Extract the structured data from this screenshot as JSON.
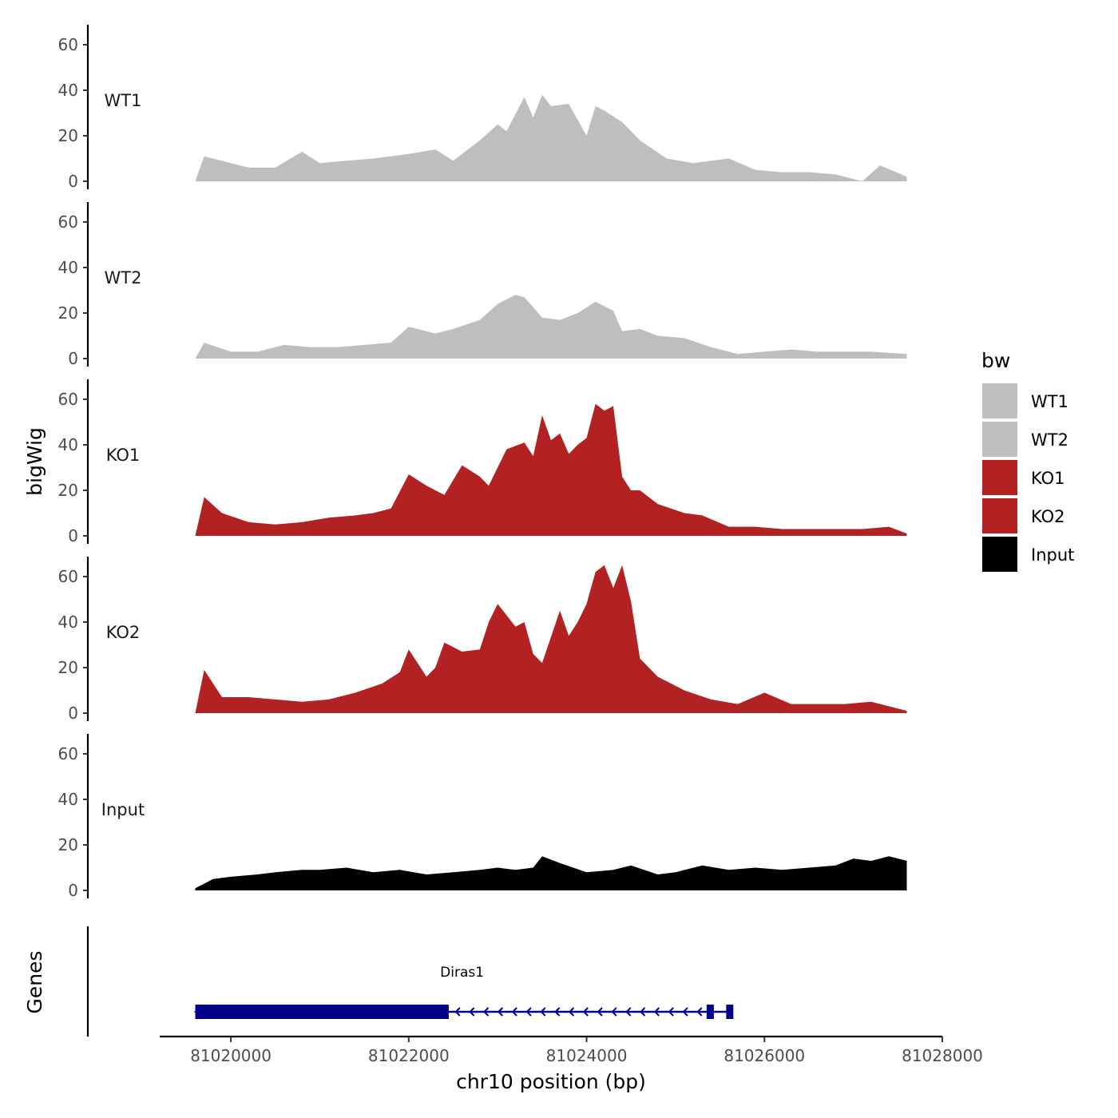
{
  "chart_data": {
    "type": "area",
    "title": "",
    "ylabel": "bigWig",
    "xlabel": "chr10 position (bp)",
    "ylim": [
      0,
      70
    ],
    "yticks": [
      0,
      20,
      40,
      60
    ],
    "xlim": [
      81019200,
      81028000
    ],
    "xticks": [
      81020000,
      81022000,
      81024000,
      81026000,
      81028000
    ],
    "xtick_labels": [
      "81020000",
      "81022000",
      "81024000",
      "81026000",
      "81028000"
    ],
    "ytick_labels": [
      "0",
      "20",
      "40",
      "60"
    ],
    "x_start": 81019600,
    "x_end": 81027600,
    "legend": {
      "title": "bw",
      "position": "right",
      "entries": [
        {
          "name": "WT1",
          "color": "#bebebe"
        },
        {
          "name": "WT2",
          "color": "#bebebe"
        },
        {
          "name": "KO1",
          "color": "#b22222"
        },
        {
          "name": "KO2",
          "color": "#b22222"
        },
        {
          "name": "Input",
          "color": "#000000"
        }
      ]
    },
    "series": [
      {
        "name": "WT1",
        "color": "#bebebe",
        "x": [
          81019600,
          81019700,
          81020000,
          81020200,
          81020500,
          81020800,
          81021000,
          81021300,
          81021600,
          81022000,
          81022300,
          81022500,
          81022800,
          81023000,
          81023100,
          81023300,
          81023400,
          81023500,
          81023600,
          81023800,
          81024000,
          81024100,
          81024200,
          81024400,
          81024500,
          81024600,
          81024900,
          81025200,
          81025600,
          81025900,
          81026200,
          81026500,
          81026800,
          81027100,
          81027300,
          81027600
        ],
        "values": [
          0,
          11,
          8,
          6,
          6,
          13,
          8,
          9,
          10,
          12,
          14,
          9,
          18,
          25,
          22,
          37,
          28,
          38,
          33,
          34,
          20,
          33,
          31,
          26,
          22,
          18,
          10,
          8,
          10,
          5,
          4,
          4,
          3,
          0,
          7,
          2
        ]
      },
      {
        "name": "WT2",
        "color": "#bebebe",
        "x": [
          81019600,
          81019700,
          81020000,
          81020300,
          81020600,
          81020900,
          81021200,
          81021500,
          81021800,
          81022000,
          81022300,
          81022500,
          81022800,
          81023000,
          81023200,
          81023300,
          81023500,
          81023700,
          81023900,
          81024100,
          81024300,
          81024400,
          81024600,
          81024800,
          81025100,
          81025400,
          81025700,
          81026000,
          81026300,
          81026600,
          81026900,
          81027200,
          81027600
        ],
        "values": [
          0,
          7,
          3,
          3,
          6,
          5,
          5,
          6,
          7,
          14,
          11,
          13,
          17,
          24,
          28,
          27,
          18,
          17,
          20,
          25,
          21,
          12,
          13,
          10,
          9,
          5,
          2,
          3,
          4,
          3,
          3,
          3,
          2
        ]
      },
      {
        "name": "KO1",
        "color": "#b22222",
        "x": [
          81019600,
          81019700,
          81019900,
          81020200,
          81020500,
          81020800,
          81021100,
          81021400,
          81021600,
          81021800,
          81022000,
          81022200,
          81022400,
          81022600,
          81022800,
          81022900,
          81023100,
          81023300,
          81023400,
          81023500,
          81023600,
          81023700,
          81023800,
          81023900,
          81024000,
          81024100,
          81024200,
          81024300,
          81024400,
          81024500,
          81024600,
          81024800,
          81025100,
          81025300,
          81025600,
          81025900,
          81026200,
          81026500,
          81026800,
          81027100,
          81027400,
          81027600
        ],
        "values": [
          0,
          17,
          10,
          6,
          5,
          6,
          8,
          9,
          10,
          12,
          27,
          22,
          18,
          31,
          26,
          22,
          38,
          41,
          35,
          53,
          42,
          45,
          36,
          40,
          43,
          58,
          55,
          57,
          26,
          20,
          20,
          14,
          10,
          9,
          4,
          4,
          3,
          3,
          3,
          3,
          4,
          1
        ]
      },
      {
        "name": "KO2",
        "color": "#b22222",
        "x": [
          81019600,
          81019700,
          81019900,
          81020200,
          81020500,
          81020800,
          81021100,
          81021400,
          81021700,
          81021900,
          81022000,
          81022200,
          81022300,
          81022400,
          81022600,
          81022800,
          81022900,
          81023000,
          81023200,
          81023300,
          81023400,
          81023500,
          81023700,
          81023800,
          81023900,
          81024000,
          81024100,
          81024200,
          81024300,
          81024400,
          81024500,
          81024600,
          81024800,
          81025100,
          81025400,
          81025700,
          81026000,
          81026300,
          81026600,
          81026900,
          81027200,
          81027600
        ],
        "values": [
          0,
          19,
          7,
          7,
          6,
          5,
          6,
          9,
          13,
          18,
          28,
          16,
          20,
          31,
          27,
          28,
          40,
          48,
          38,
          40,
          26,
          22,
          45,
          34,
          40,
          48,
          62,
          65,
          55,
          65,
          49,
          24,
          16,
          10,
          6,
          4,
          9,
          4,
          4,
          4,
          5,
          1
        ]
      },
      {
        "name": "Input",
        "color": "#000000",
        "x": [
          81019600,
          81019800,
          81020000,
          81020300,
          81020500,
          81020800,
          81021000,
          81021300,
          81021600,
          81021900,
          81022200,
          81022500,
          81022800,
          81023000,
          81023200,
          81023400,
          81023500,
          81023700,
          81024000,
          81024300,
          81024500,
          81024800,
          81025000,
          81025300,
          81025600,
          81025900,
          81026200,
          81026500,
          81026800,
          81027000,
          81027200,
          81027400,
          81027600
        ],
        "values": [
          1,
          5,
          6,
          7,
          8,
          9,
          9,
          10,
          8,
          9,
          7,
          8,
          9,
          10,
          9,
          10,
          15,
          12,
          8,
          9,
          11,
          7,
          8,
          11,
          9,
          10,
          9,
          10,
          11,
          14,
          13,
          15,
          13
        ]
      }
    ],
    "genes": [
      {
        "name": "Diras1",
        "start": 81019600,
        "end": 81025650,
        "strand": "-",
        "cds_end": 81022450
      }
    ],
    "genes_ylabel": "Genes"
  }
}
